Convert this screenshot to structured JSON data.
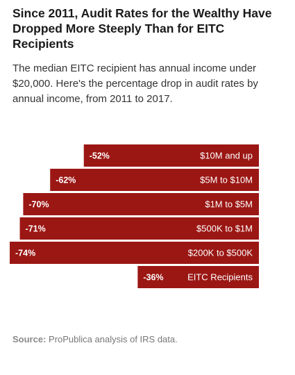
{
  "header": {
    "title": "Since 2011, Audit Rates for the Wealthy Have Dropped More Steeply Than for EITC Recipients",
    "subtitle": "The median EITC recipient has annual income under $20,000. Here's the percentage drop in audit rates by annual income, from 2011 to 2017."
  },
  "footer": {
    "source_label": "Source:",
    "source_text": "ProPublica analysis of IRS data."
  },
  "colors": {
    "bar": "#9b1714",
    "bar_text": "#ffffff"
  },
  "chart_data": {
    "type": "bar",
    "orientation": "horizontal",
    "title": "Since 2011, Audit Rates for the Wealthy Have Dropped More Steeply Than for EITC Recipients",
    "categories": [
      "$10M and up",
      "$5M to $10M",
      "$1M to $5M",
      "$500K to $1M",
      "$200K to $500K",
      "EITC Recipients"
    ],
    "values": [
      -52,
      -62,
      -70,
      -71,
      -74,
      -36
    ],
    "value_labels": [
      "-52%",
      "-62%",
      "-70%",
      "-71%",
      "-74%",
      "-36%"
    ],
    "xlim": [
      -74,
      0
    ],
    "grid": false
  }
}
